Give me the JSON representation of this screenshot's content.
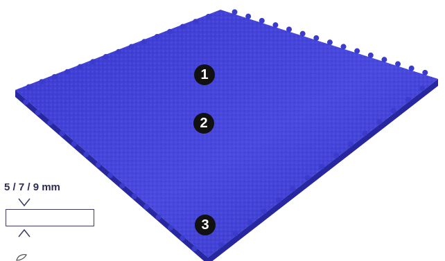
{
  "markers": [
    {
      "number": "1"
    },
    {
      "number": "2"
    },
    {
      "number": "3"
    }
  ],
  "thickness": {
    "label": "5 / 7 / 9 mm"
  },
  "colors": {
    "tile": "#4040d4",
    "tile_dark": "#2e2eb0",
    "marker": "#111111",
    "text": "#2d2d52"
  }
}
